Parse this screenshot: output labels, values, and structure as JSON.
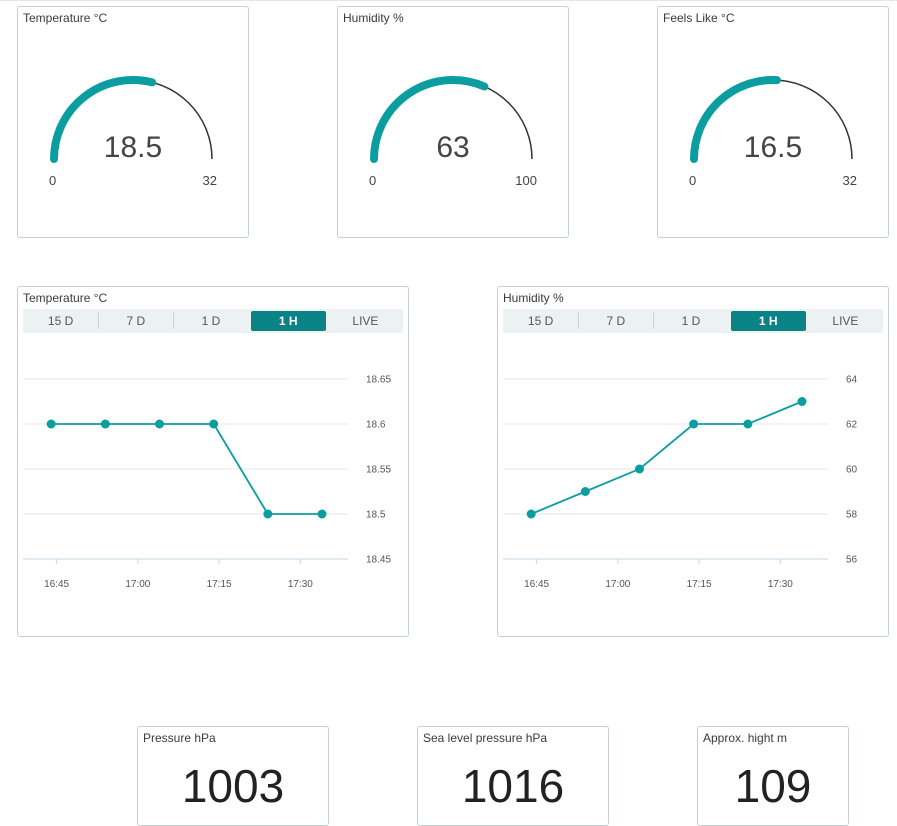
{
  "colors": {
    "accent": "#0b9da0",
    "active_tab": "#0b8285",
    "track": "#333333",
    "border": "#c7d1d2"
  },
  "gauges": [
    {
      "title": "Temperature °C",
      "value": "18.5",
      "min": "0",
      "max": "32",
      "value_num": 18.5,
      "min_num": 0,
      "max_num": 32
    },
    {
      "title": "Humidity %",
      "value": "63",
      "min": "0",
      "max": "100",
      "value_num": 63,
      "min_num": 0,
      "max_num": 100
    },
    {
      "title": "Feels Like °C",
      "value": "16.5",
      "min": "0",
      "max": "32",
      "value_num": 16.5,
      "min_num": 0,
      "max_num": 32
    }
  ],
  "charts": [
    {
      "title": "Temperature °C",
      "tabs": [
        "15 D",
        "7 D",
        "1 D",
        "1 H",
        "LIVE"
      ],
      "active_tab": "1 H"
    },
    {
      "title": "Humidity %",
      "tabs": [
        "15 D",
        "7 D",
        "1 D",
        "1 H",
        "LIVE"
      ],
      "active_tab": "1 H"
    }
  ],
  "chart_data": [
    {
      "type": "line",
      "title": "Temperature °C",
      "x": [
        "16:44",
        "16:54",
        "17:04",
        "17:14",
        "17:24",
        "17:34"
      ],
      "values": [
        18.6,
        18.6,
        18.6,
        18.6,
        18.5,
        18.5
      ],
      "x_ticks": [
        "16:45",
        "17:00",
        "17:15",
        "17:30"
      ],
      "y_ticks": [
        "18.45",
        "18.5",
        "18.55",
        "18.6",
        "18.65"
      ],
      "ylim": [
        18.45,
        18.65
      ],
      "grid": true
    },
    {
      "type": "line",
      "title": "Humidity %",
      "x": [
        "16:44",
        "16:54",
        "17:04",
        "17:14",
        "17:24",
        "17:34"
      ],
      "values": [
        58,
        59,
        60,
        62,
        62,
        63
      ],
      "x_ticks": [
        "16:45",
        "17:00",
        "17:15",
        "17:30"
      ],
      "y_ticks": [
        "56",
        "58",
        "60",
        "62",
        "64"
      ],
      "ylim": [
        56,
        64
      ],
      "grid": true
    }
  ],
  "values": [
    {
      "title": "Pressure hPa",
      "value": "1003"
    },
    {
      "title": "Sea level pressure hPa",
      "value": "1016"
    },
    {
      "title": "Approx. hight m",
      "value": "109"
    }
  ]
}
